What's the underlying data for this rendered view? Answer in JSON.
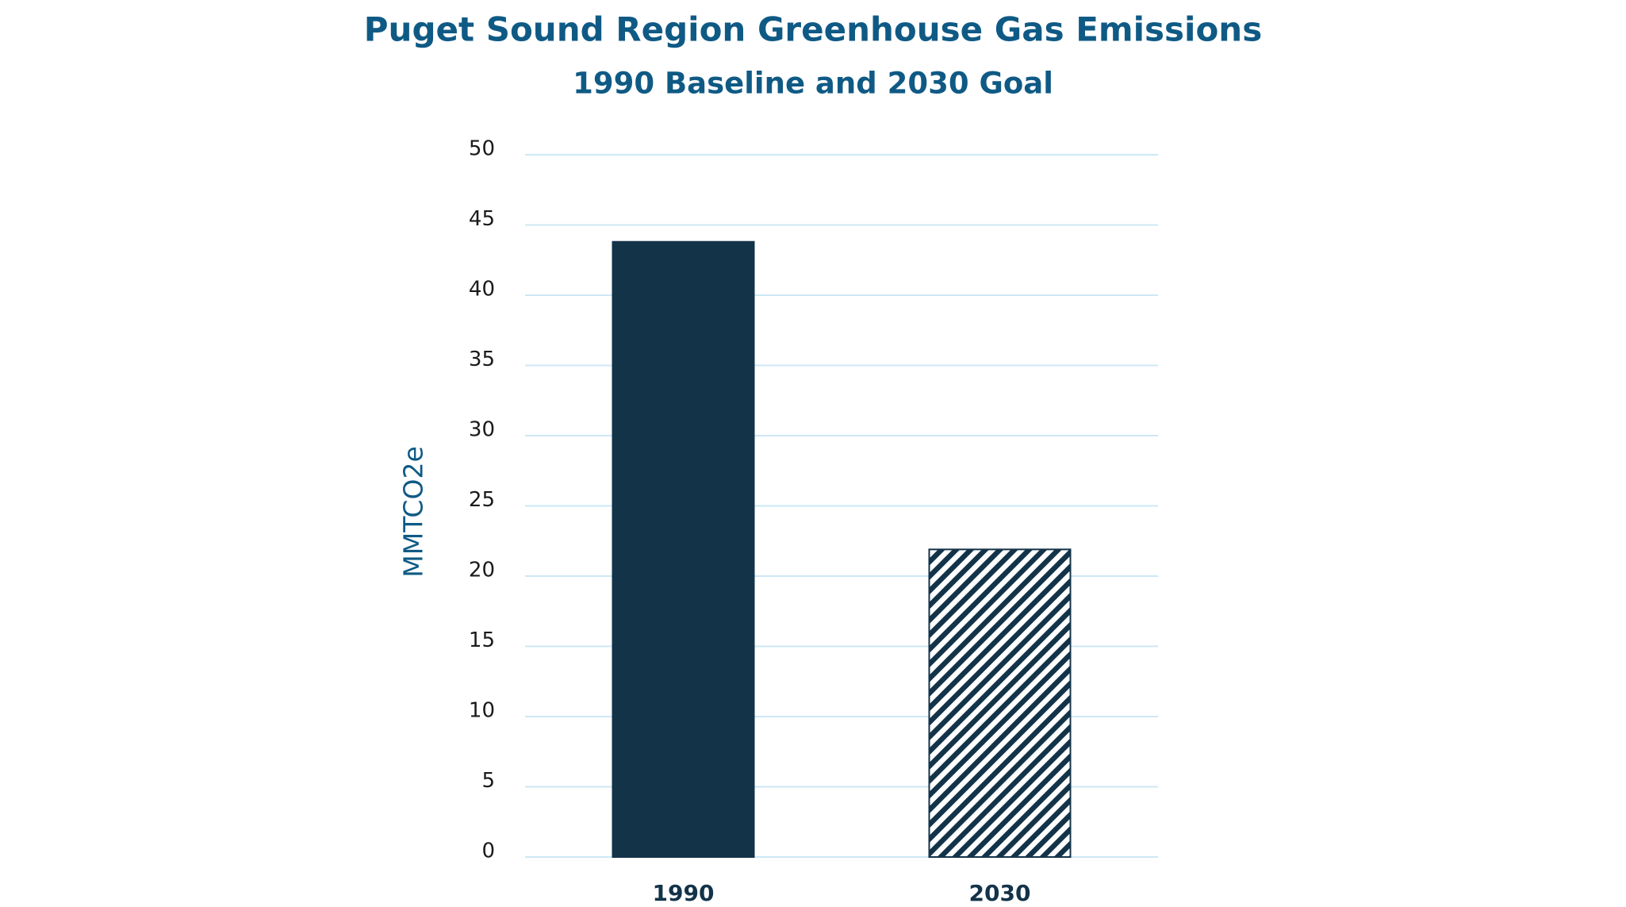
{
  "chart_data": {
    "type": "bar",
    "title": "Puget Sound Region Greenhouse Gas Emissions",
    "subtitle": "1990 Baseline and 2030 Goal",
    "y_label": "MMTCO2e",
    "categories": [
      "1990",
      "2030"
    ],
    "values": [
      43.8,
      21.9
    ],
    "colors": [
      "#133349",
      "#133349"
    ],
    "hatch": [
      false,
      true
    ],
    "ylim": [
      0,
      50
    ],
    "yticks": [
      0,
      5,
      10,
      15,
      20,
      25,
      30,
      35,
      40,
      45,
      50
    ],
    "grid": true
  }
}
